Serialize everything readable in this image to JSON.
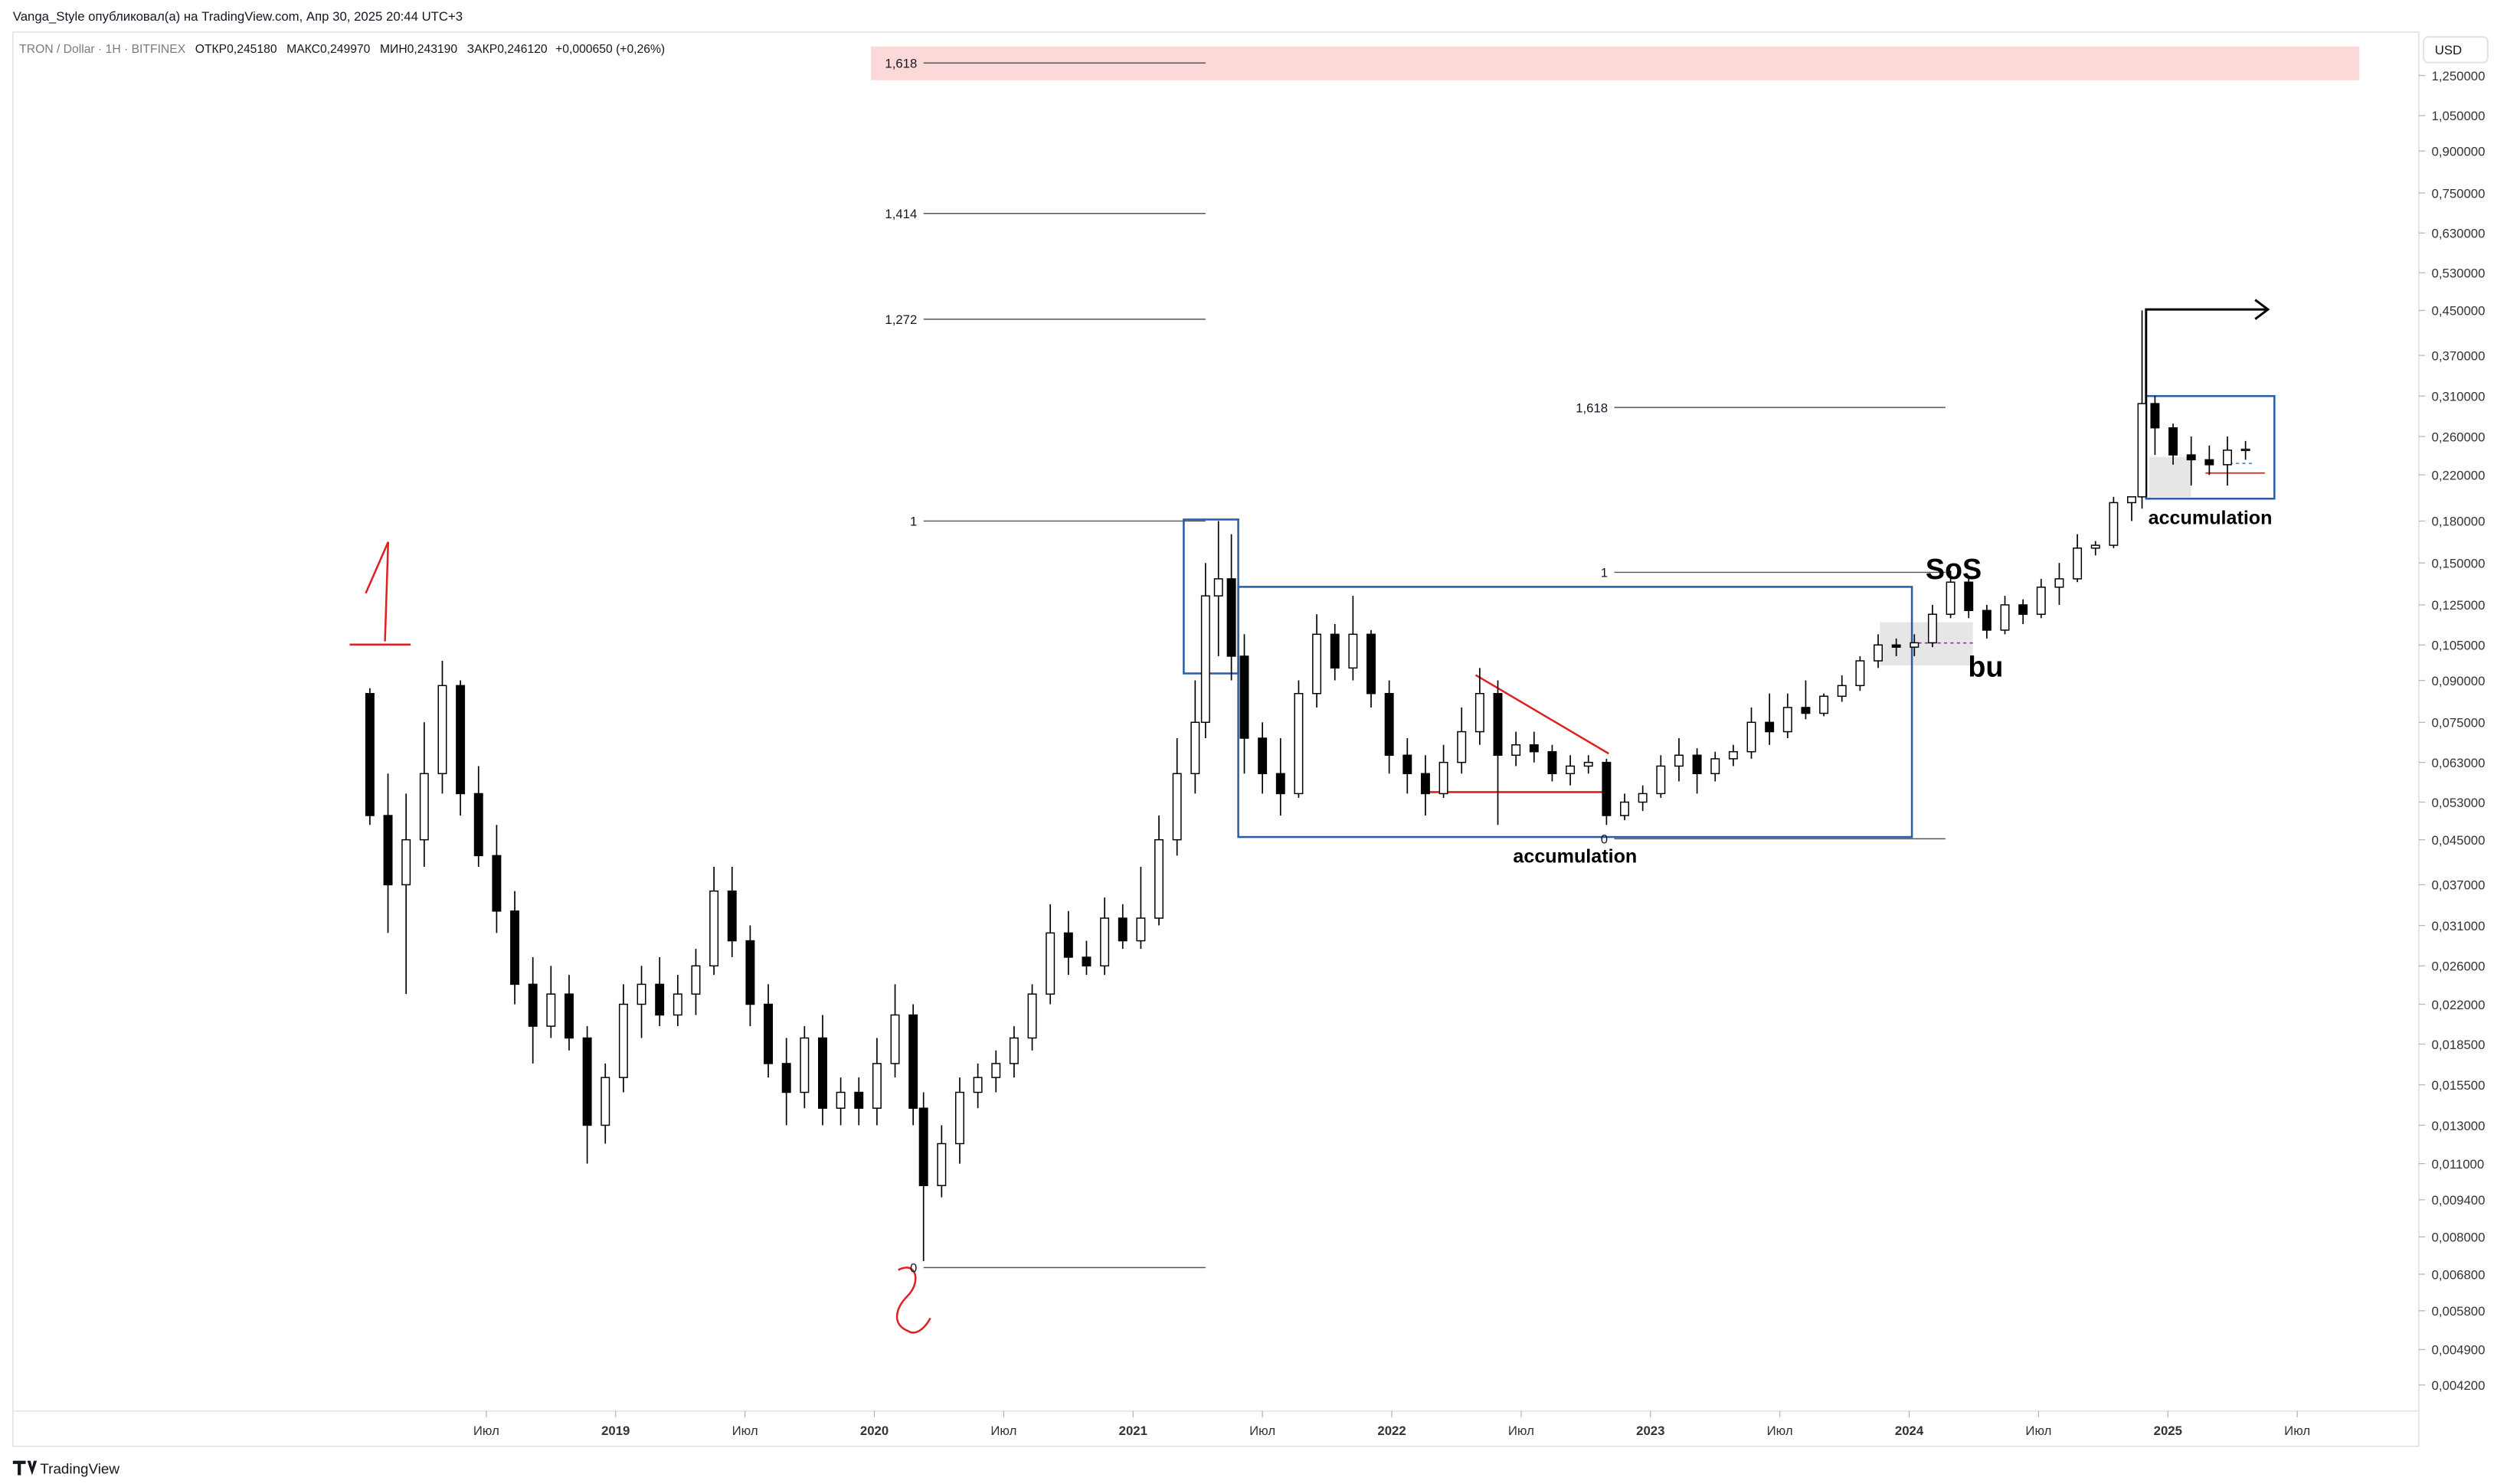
{
  "header": {
    "author_line": "Vanga_Style опубликовал(а) на TradingView.com, Апр 30, 2025 20:44 UTC+3",
    "symbol": "TRON / Dollar · 1Н · BITFINEX",
    "ohlc": [
      {
        "label": "ОТКР",
        "value": "0,245180"
      },
      {
        "label": "МАКС",
        "value": "0,249970"
      },
      {
        "label": "МИН",
        "value": "0,243190"
      },
      {
        "label": "ЗАКР",
        "value": "0,246120"
      }
    ],
    "change": "+0,000650 (+0,26%)",
    "currency": "USD"
  },
  "footer": {
    "brand": "TradingView"
  },
  "chart_data": {
    "type": "candlestick",
    "log_scale": true,
    "up_color": "#ffffff",
    "down_color": "#000000",
    "edge_color": "#000000",
    "xlim": [
      2016.67,
      2025.92
    ],
    "ylim": [
      0.00375,
      1.51
    ],
    "xticks": [
      {
        "value": 2018.5,
        "label": "Июл"
      },
      2019,
      {
        "value": 2019.5,
        "label": "Июл"
      },
      2020,
      {
        "value": 2020.5,
        "label": "Июл"
      },
      2021,
      {
        "value": 2021.5,
        "label": "Июл"
      },
      2022,
      {
        "value": 2022.5,
        "label": "Июл"
      },
      2023,
      {
        "value": 2023.5,
        "label": "Июл"
      },
      2024,
      {
        "value": 2024.5,
        "label": "Июл"
      },
      2025,
      {
        "value": 2025.5,
        "label": "Июл"
      }
    ],
    "yticks": [
      {
        "value": 1.25,
        "label": "1,250000"
      },
      {
        "value": 1.05,
        "label": "1,050000"
      },
      {
        "value": 0.9,
        "label": "0,900000"
      },
      {
        "value": 0.75,
        "label": "0,750000"
      },
      {
        "value": 0.63,
        "label": "0,630000"
      },
      {
        "value": 0.53,
        "label": "0,530000"
      },
      {
        "value": 0.45,
        "label": "0,450000"
      },
      {
        "value": 0.37,
        "label": "0,370000"
      },
      {
        "value": 0.31,
        "label": "0,310000"
      },
      {
        "value": 0.26,
        "label": "0,260000"
      },
      {
        "value": 0.22,
        "label": "0,220000"
      },
      {
        "value": 0.18,
        "label": "0,180000"
      },
      {
        "value": 0.15,
        "label": "0,150000"
      },
      {
        "value": 0.125,
        "label": "0,125000"
      },
      {
        "value": 0.105,
        "label": "0,105000"
      },
      {
        "value": 0.09,
        "label": "0,090000"
      },
      {
        "value": 0.075,
        "label": "0,075000"
      },
      {
        "value": 0.063,
        "label": "0,063000"
      },
      {
        "value": 0.053,
        "label": "0,053000"
      },
      {
        "value": 0.045,
        "label": "0,045000"
      },
      {
        "value": 0.037,
        "label": "0,037000"
      },
      {
        "value": 0.031,
        "label": "0,031000"
      },
      {
        "value": 0.026,
        "label": "0,026000"
      },
      {
        "value": 0.022,
        "label": "0,022000"
      },
      {
        "value": 0.0185,
        "label": "0,018500"
      },
      {
        "value": 0.0155,
        "label": "0,015500"
      },
      {
        "value": 0.013,
        "label": "0,013000"
      },
      {
        "value": 0.011,
        "label": "0,011000"
      },
      {
        "value": 0.0094,
        "label": "0,009400"
      },
      {
        "value": 0.008,
        "label": "0,008000"
      },
      {
        "value": 0.0068,
        "label": "0,006800"
      },
      {
        "value": 0.0058,
        "label": "0,005800"
      },
      {
        "value": 0.0049,
        "label": "0,004900"
      },
      {
        "value": 0.0042,
        "label": "0,004200"
      }
    ],
    "x": [
      2018.05,
      2018.12,
      2018.19,
      2018.26,
      2018.33,
      2018.4,
      2018.47,
      2018.54,
      2018.61,
      2018.68,
      2018.75,
      2018.82,
      2018.89,
      2018.96,
      2019.03,
      2019.1,
      2019.17,
      2019.24,
      2019.31,
      2019.38,
      2019.45,
      2019.52,
      2019.59,
      2019.66,
      2019.73,
      2019.8,
      2019.87,
      2019.94,
      2020.01,
      2020.08,
      2020.15,
      2020.19,
      2020.26,
      2020.33,
      2020.4,
      2020.47,
      2020.54,
      2020.61,
      2020.68,
      2020.75,
      2020.82,
      2020.89,
      2020.96,
      2021.03,
      2021.1,
      2021.17,
      2021.24,
      2021.28,
      2021.33,
      2021.38,
      2021.43,
      2021.5,
      2021.57,
      2021.64,
      2021.71,
      2021.78,
      2021.85,
      2021.92,
      2021.99,
      2022.06,
      2022.13,
      2022.2,
      2022.27,
      2022.34,
      2022.41,
      2022.48,
      2022.55,
      2022.62,
      2022.69,
      2022.76,
      2022.83,
      2022.9,
      2022.97,
      2023.04,
      2023.11,
      2023.18,
      2023.25,
      2023.32,
      2023.39,
      2023.46,
      2023.53,
      2023.6,
      2023.67,
      2023.74,
      2023.81,
      2023.88,
      2023.95,
      2024.02,
      2024.09,
      2024.16,
      2024.23,
      2024.3,
      2024.37,
      2024.44,
      2024.51,
      2024.58,
      2024.65,
      2024.72,
      2024.79,
      2024.86,
      2024.9,
      2024.95,
      2025.02,
      2025.09,
      2025.16,
      2025.23,
      2025.3
    ],
    "open": [
      0.085,
      0.05,
      0.037,
      0.045,
      0.06,
      0.088,
      0.055,
      0.042,
      0.033,
      0.024,
      0.02,
      0.023,
      0.019,
      0.013,
      0.016,
      0.022,
      0.024,
      0.021,
      0.023,
      0.026,
      0.036,
      0.029,
      0.022,
      0.017,
      0.015,
      0.019,
      0.014,
      0.015,
      0.014,
      0.017,
      0.021,
      0.014,
      0.01,
      0.012,
      0.015,
      0.016,
      0.017,
      0.019,
      0.023,
      0.03,
      0.027,
      0.026,
      0.032,
      0.029,
      0.032,
      0.045,
      0.06,
      0.075,
      0.13,
      0.14,
      0.1,
      0.07,
      0.06,
      0.055,
      0.085,
      0.11,
      0.095,
      0.11,
      0.085,
      0.065,
      0.06,
      0.055,
      0.063,
      0.072,
      0.085,
      0.065,
      0.068,
      0.066,
      0.06,
      0.062,
      0.063,
      0.05,
      0.053,
      0.055,
      0.062,
      0.065,
      0.06,
      0.064,
      0.066,
      0.075,
      0.072,
      0.08,
      0.078,
      0.084,
      0.088,
      0.098,
      0.105,
      0.104,
      0.106,
      0.12,
      0.138,
      0.122,
      0.112,
      0.125,
      0.12,
      0.135,
      0.14,
      0.16,
      0.162,
      0.195,
      0.2,
      0.3,
      0.27,
      0.24,
      0.235,
      0.23,
      0.245
    ],
    "high": [
      0.087,
      0.06,
      0.055,
      0.075,
      0.098,
      0.09,
      0.062,
      0.048,
      0.036,
      0.027,
      0.026,
      0.025,
      0.02,
      0.017,
      0.024,
      0.026,
      0.027,
      0.025,
      0.028,
      0.04,
      0.04,
      0.031,
      0.024,
      0.019,
      0.02,
      0.021,
      0.016,
      0.016,
      0.019,
      0.024,
      0.022,
      0.015,
      0.013,
      0.016,
      0.017,
      0.018,
      0.02,
      0.024,
      0.034,
      0.033,
      0.029,
      0.035,
      0.034,
      0.04,
      0.05,
      0.07,
      0.09,
      0.15,
      0.18,
      0.17,
      0.11,
      0.075,
      0.07,
      0.09,
      0.12,
      0.115,
      0.13,
      0.112,
      0.09,
      0.07,
      0.065,
      0.068,
      0.08,
      0.095,
      0.09,
      0.072,
      0.072,
      0.068,
      0.065,
      0.065,
      0.064,
      0.055,
      0.057,
      0.065,
      0.07,
      0.067,
      0.066,
      0.068,
      0.08,
      0.085,
      0.085,
      0.09,
      0.085,
      0.092,
      0.1,
      0.11,
      0.108,
      0.11,
      0.125,
      0.145,
      0.14,
      0.125,
      0.13,
      0.128,
      0.14,
      0.15,
      0.17,
      0.165,
      0.2,
      0.2,
      0.45,
      0.31,
      0.275,
      0.26,
      0.25,
      0.26,
      0.255
    ],
    "low": [
      0.048,
      0.03,
      0.023,
      0.04,
      0.055,
      0.05,
      0.04,
      0.03,
      0.022,
      0.017,
      0.019,
      0.018,
      0.011,
      0.012,
      0.015,
      0.019,
      0.02,
      0.02,
      0.021,
      0.025,
      0.027,
      0.02,
      0.016,
      0.013,
      0.014,
      0.013,
      0.013,
      0.013,
      0.013,
      0.016,
      0.013,
      0.0072,
      0.0095,
      0.011,
      0.014,
      0.015,
      0.016,
      0.018,
      0.022,
      0.025,
      0.025,
      0.025,
      0.028,
      0.028,
      0.031,
      0.042,
      0.055,
      0.07,
      0.1,
      0.09,
      0.06,
      0.055,
      0.05,
      0.054,
      0.08,
      0.09,
      0.09,
      0.08,
      0.06,
      0.055,
      0.05,
      0.054,
      0.06,
      0.068,
      0.048,
      0.062,
      0.063,
      0.058,
      0.057,
      0.06,
      0.048,
      0.049,
      0.051,
      0.054,
      0.058,
      0.055,
      0.058,
      0.062,
      0.064,
      0.068,
      0.07,
      0.076,
      0.077,
      0.082,
      0.086,
      0.095,
      0.1,
      0.1,
      0.104,
      0.118,
      0.118,
      0.108,
      0.11,
      0.115,
      0.118,
      0.125,
      0.138,
      0.155,
      0.16,
      0.18,
      0.19,
      0.24,
      0.23,
      0.21,
      0.22,
      0.21,
      0.235
    ],
    "close": [
      0.05,
      0.037,
      0.045,
      0.06,
      0.088,
      0.055,
      0.042,
      0.033,
      0.024,
      0.02,
      0.023,
      0.019,
      0.013,
      0.016,
      0.022,
      0.024,
      0.021,
      0.023,
      0.026,
      0.036,
      0.029,
      0.022,
      0.017,
      0.015,
      0.019,
      0.014,
      0.015,
      0.014,
      0.017,
      0.021,
      0.014,
      0.01,
      0.012,
      0.015,
      0.016,
      0.017,
      0.019,
      0.023,
      0.03,
      0.027,
      0.026,
      0.032,
      0.029,
      0.032,
      0.045,
      0.06,
      0.075,
      0.13,
      0.14,
      0.1,
      0.07,
      0.06,
      0.055,
      0.085,
      0.11,
      0.095,
      0.11,
      0.085,
      0.065,
      0.06,
      0.055,
      0.063,
      0.072,
      0.085,
      0.065,
      0.068,
      0.066,
      0.06,
      0.062,
      0.063,
      0.05,
      0.053,
      0.055,
      0.062,
      0.065,
      0.06,
      0.064,
      0.066,
      0.075,
      0.072,
      0.08,
      0.078,
      0.084,
      0.088,
      0.098,
      0.105,
      0.104,
      0.106,
      0.12,
      0.138,
      0.122,
      0.112,
      0.125,
      0.12,
      0.135,
      0.14,
      0.16,
      0.162,
      0.195,
      0.2,
      0.3,
      0.27,
      0.24,
      0.235,
      0.23,
      0.245,
      0.246
    ],
    "fib_levels": [
      {
        "label": "1,618",
        "price": 1.32,
        "x0": 2020.19,
        "x1": 2021.28
      },
      {
        "label": "1,414",
        "price": 0.686,
        "x0": 2020.19,
        "x1": 2021.28
      },
      {
        "label": "1,272",
        "price": 0.433,
        "x0": 2020.19,
        "x1": 2021.28
      },
      {
        "label": "1",
        "price": 0.18,
        "x0": 2020.19,
        "x1": 2021.28
      },
      {
        "label": "0",
        "price": 0.007,
        "x0": 2020.19,
        "x1": 2021.28
      },
      {
        "label": "1,618",
        "price": 0.295,
        "x0": 2022.86,
        "x1": 2024.14
      },
      {
        "label": "1",
        "price": 0.144,
        "x0": 2022.86,
        "x1": 2024.14
      },
      {
        "label": "0",
        "price": 0.0452,
        "x0": 2022.86,
        "x1": 2024.14
      }
    ],
    "annotations": [
      "accumulation",
      "SoS",
      "bu",
      "accumulation"
    ]
  }
}
